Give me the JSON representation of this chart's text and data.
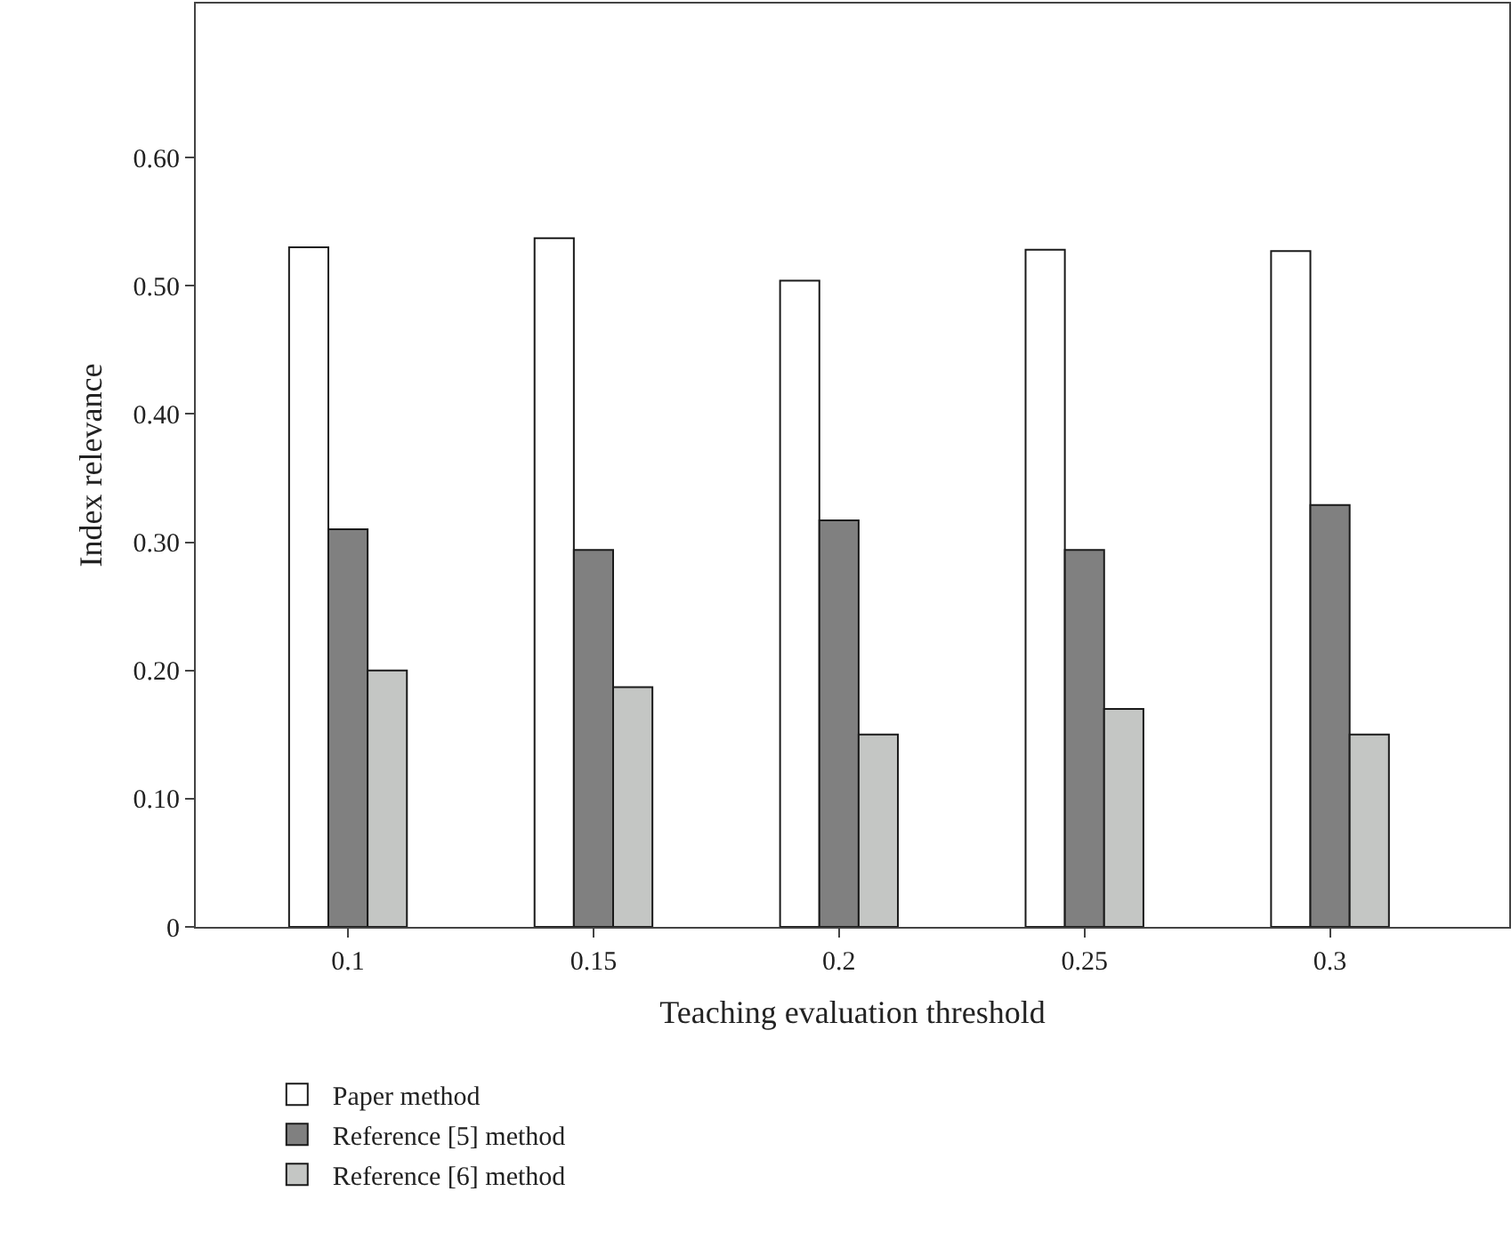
{
  "chart_data": {
    "type": "bar",
    "xlabel": "Teaching evaluation threshold",
    "ylabel": "Index relevance",
    "categories": [
      "0.1",
      "0.15",
      "0.2",
      "0.25",
      "0.3"
    ],
    "series": [
      {
        "name": "Paper method",
        "color": "#ffffff",
        "values": [
          0.53,
          0.537,
          0.504,
          0.528,
          0.527
        ]
      },
      {
        "name": "Reference [5] method",
        "color": "#808080",
        "values": [
          0.31,
          0.294,
          0.317,
          0.294,
          0.329
        ]
      },
      {
        "name": "Reference [6] method",
        "color": "#c4c6c4",
        "values": [
          0.2,
          0.187,
          0.15,
          0.17,
          0.15
        ]
      }
    ],
    "ylim": [
      0,
      0.72
    ],
    "yticks": [
      {
        "value": 0,
        "label": "0"
      },
      {
        "value": 0.1,
        "label": "0.10"
      },
      {
        "value": 0.2,
        "label": "0.20"
      },
      {
        "value": 0.3,
        "label": "0.30"
      },
      {
        "value": 0.4,
        "label": "0.40"
      },
      {
        "value": 0.5,
        "label": "0.50"
      },
      {
        "value": 0.6,
        "label": "0.60"
      }
    ],
    "grid": false,
    "legend": "bottom left"
  }
}
